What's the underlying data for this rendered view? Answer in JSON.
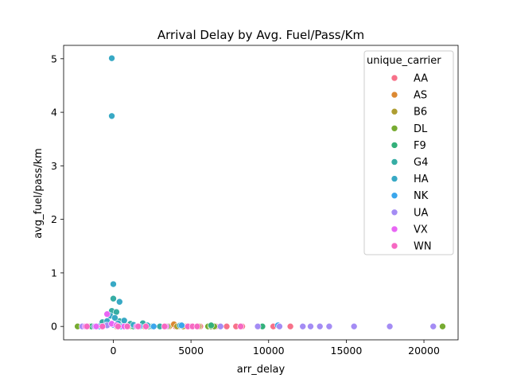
{
  "chart_data": {
    "type": "scatter",
    "title": "Arrival Delay by Avg. Fuel/Pass/Km",
    "xlabel": "arr_delay",
    "ylabel": "avg_fuel/pass/km",
    "xlim": [
      -3200,
      22200
    ],
    "ylim": [
      -0.25,
      5.25
    ],
    "xticks": [
      0,
      5000,
      10000,
      15000,
      20000
    ],
    "yticks": [
      0,
      1,
      2,
      3,
      4,
      5
    ],
    "grid": false,
    "legend": {
      "title": "unique_carrier",
      "position": "upper-right"
    },
    "series": [
      {
        "name": "AA",
        "color": "#f77189",
        "points": [
          [
            -1600,
            0
          ],
          [
            1000,
            0
          ],
          [
            1600,
            0
          ],
          [
            2200,
            0
          ],
          [
            4000,
            0
          ],
          [
            5600,
            0
          ],
          [
            6600,
            0
          ],
          [
            7300,
            0
          ],
          [
            7900,
            0
          ],
          [
            8300,
            0
          ],
          [
            10300,
            0
          ],
          [
            11400,
            0
          ]
        ]
      },
      {
        "name": "AS",
        "color": "#dc8932",
        "points": [
          [
            -1500,
            0
          ],
          [
            -900,
            0
          ],
          [
            300,
            0
          ],
          [
            1400,
            0
          ],
          [
            2100,
            0
          ],
          [
            3600,
            0
          ],
          [
            3900,
            0.04
          ],
          [
            4200,
            0
          ],
          [
            4600,
            0
          ]
        ]
      },
      {
        "name": "B6",
        "color": "#ae9d31",
        "points": [
          [
            -1200,
            0
          ],
          [
            200,
            0
          ],
          [
            800,
            0
          ],
          [
            2000,
            0
          ],
          [
            4100,
            0
          ],
          [
            4500,
            0
          ],
          [
            5500,
            0
          ],
          [
            6400,
            0
          ]
        ]
      },
      {
        "name": "DL",
        "color": "#77ab31",
        "points": [
          [
            -2300,
            0
          ],
          [
            -800,
            0
          ],
          [
            500,
            0
          ],
          [
            1200,
            0
          ],
          [
            3500,
            0
          ],
          [
            6100,
            0
          ],
          [
            6300,
            0
          ],
          [
            6500,
            0
          ],
          [
            21200,
            0
          ]
        ]
      },
      {
        "name": "F9",
        "color": "#33b07a",
        "points": [
          [
            -1400,
            0
          ],
          [
            -600,
            0.02
          ],
          [
            600,
            0
          ],
          [
            1300,
            0
          ],
          [
            2300,
            0
          ],
          [
            6300,
            0.02
          ],
          [
            9600,
            0
          ]
        ]
      },
      {
        "name": "G4",
        "color": "#36ada4",
        "points": [
          [
            -100,
            0.29
          ],
          [
            200,
            0.27
          ],
          [
            0,
            0.52
          ],
          [
            -700,
            0.08
          ],
          [
            400,
            0.1
          ],
          [
            -300,
            0.04
          ],
          [
            700,
            0.03
          ],
          [
            1100,
            0.05
          ],
          [
            1900,
            0.06
          ],
          [
            -1800,
            0
          ],
          [
            2500,
            0
          ],
          [
            3000,
            0
          ]
        ]
      },
      {
        "name": "HA",
        "color": "#38a9c5",
        "points": [
          [
            -100,
            5.01
          ],
          [
            -100,
            3.93
          ],
          [
            0,
            0.79
          ],
          [
            400,
            0.46
          ],
          [
            -200,
            0.2
          ],
          [
            100,
            0.16
          ],
          [
            700,
            0.11
          ],
          [
            -400,
            0.1
          ],
          [
            300,
            0.06
          ],
          [
            1300,
            0.03
          ],
          [
            2200,
            0.02
          ],
          [
            4300,
            0.02
          ]
        ]
      },
      {
        "name": "NK",
        "color": "#3aa6ec",
        "points": [
          [
            -900,
            0
          ],
          [
            -500,
            0.02
          ],
          [
            0,
            0.03
          ],
          [
            500,
            0
          ],
          [
            1700,
            0
          ],
          [
            2600,
            0
          ],
          [
            4400,
            0.02
          ],
          [
            10600,
            0.02
          ]
        ]
      },
      {
        "name": "UA",
        "color": "#a48cf4",
        "points": [
          [
            -2000,
            0
          ],
          [
            -1200,
            0
          ],
          [
            -400,
            0.02
          ],
          [
            6900,
            0
          ],
          [
            9300,
            0
          ],
          [
            10700,
            0
          ],
          [
            12200,
            0
          ],
          [
            12700,
            0
          ],
          [
            13300,
            0
          ],
          [
            13900,
            0
          ],
          [
            15500,
            0
          ],
          [
            17800,
            0
          ],
          [
            20600,
            0
          ]
        ]
      },
      {
        "name": "VX",
        "color": "#e866f4",
        "points": [
          [
            -400,
            0.23
          ],
          [
            -100,
            0.05
          ],
          [
            200,
            0.02
          ],
          [
            -1800,
            0
          ],
          [
            -1100,
            0
          ],
          [
            700,
            0
          ],
          [
            1500,
            0
          ],
          [
            3400,
            0
          ],
          [
            5000,
            0
          ]
        ]
      },
      {
        "name": "WN",
        "color": "#f668c2",
        "points": [
          [
            -1700,
            0
          ],
          [
            -700,
            0
          ],
          [
            300,
            0
          ],
          [
            900,
            0
          ],
          [
            1600,
            0
          ],
          [
            2100,
            0
          ],
          [
            3300,
            0
          ],
          [
            4800,
            0
          ],
          [
            5100,
            0
          ],
          [
            5400,
            0
          ],
          [
            8200,
            0
          ]
        ]
      }
    ]
  }
}
